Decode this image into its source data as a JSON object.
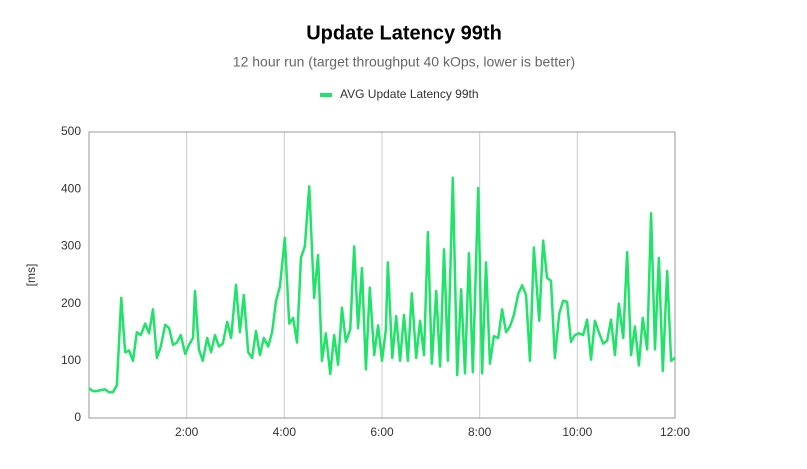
{
  "chart_data": {
    "type": "line",
    "title": "Update Latency 99th",
    "subtitle": "12 hour run (target throughput 40 kOps, lower is better)",
    "y_label": "[ms]",
    "grid": "x",
    "legend": "top",
    "xlim": [
      0,
      12
    ],
    "xticks": [
      {
        "value": 2,
        "label": "2:00"
      },
      {
        "value": 4,
        "label": "4:00"
      },
      {
        "value": 6,
        "label": "6:00"
      },
      {
        "value": 8,
        "label": "8:00"
      },
      {
        "value": 10,
        "label": "10:00"
      },
      {
        "value": 12,
        "label": "12:00"
      }
    ],
    "ylim": [
      0,
      500
    ],
    "yticks": [
      0,
      100,
      200,
      300,
      400,
      500
    ],
    "x": [
      0,
      0.08,
      0.16,
      0.25,
      0.33,
      0.41,
      0.49,
      0.57,
      0.66,
      0.74,
      0.82,
      0.9,
      0.98,
      1.06,
      1.15,
      1.23,
      1.31,
      1.39,
      1.47,
      1.56,
      1.64,
      1.72,
      1.8,
      1.88,
      1.97,
      2.05,
      2.13,
      2.17,
      2.25,
      2.33,
      2.42,
      2.5,
      2.58,
      2.66,
      2.74,
      2.83,
      2.91,
      3.01,
      3.09,
      3.17,
      3.26,
      3.34,
      3.42,
      3.5,
      3.58,
      3.67,
      3.75,
      3.83,
      3.91,
      4.01,
      4.1,
      4.18,
      4.26,
      4.34,
      4.42,
      4.51,
      4.61,
      4.69,
      4.77,
      4.85,
      4.94,
      5.02,
      5.1,
      5.18,
      5.26,
      5.35,
      5.43,
      5.51,
      5.59,
      5.67,
      5.75,
      5.84,
      5.92,
      6,
      6.08,
      6.12,
      6.21,
      6.29,
      6.37,
      6.45,
      6.53,
      6.61,
      6.7,
      6.78,
      6.86,
      6.94,
      7.02,
      7.11,
      7.19,
      7.27,
      7.35,
      7.45,
      7.54,
      7.62,
      7.7,
      7.78,
      7.86,
      7.97,
      8.05,
      8.13,
      8.21,
      8.29,
      8.38,
      8.46,
      8.54,
      8.62,
      8.7,
      8.79,
      8.87,
      8.95,
      9.03,
      9.11,
      9.22,
      9.3,
      9.38,
      9.46,
      9.54,
      9.63,
      9.71,
      9.79,
      9.87,
      9.95,
      10.03,
      10.12,
      10.2,
      10.28,
      10.36,
      10.44,
      10.53,
      10.61,
      10.69,
      10.77,
      10.85,
      10.94,
      11.02,
      11.1,
      11.18,
      11.26,
      11.34,
      11.43,
      11.51,
      11.59,
      11.67,
      11.75,
      11.84,
      11.92,
      12
    ],
    "series": [
      {
        "name": "AVG Update Latency 99th",
        "color": "#22e36a",
        "values": [
          52,
          47,
          47,
          49,
          50,
          45,
          45,
          57,
          210,
          115,
          118,
          100,
          150,
          145,
          165,
          148,
          190,
          105,
          125,
          163,
          157,
          128,
          132,
          145,
          112,
          128,
          140,
          222,
          120,
          100,
          140,
          115,
          145,
          125,
          130,
          168,
          140,
          233,
          150,
          215,
          115,
          105,
          152,
          110,
          140,
          125,
          150,
          205,
          230,
          315,
          165,
          175,
          132,
          280,
          300,
          405,
          210,
          285,
          100,
          148,
          77,
          145,
          93,
          193,
          133,
          155,
          300,
          157,
          262,
          85,
          228,
          110,
          162,
          100,
          155,
          272,
          105,
          178,
          100,
          180,
          100,
          218,
          105,
          170,
          110,
          325,
          95,
          222,
          90,
          295,
          100,
          420,
          75,
          225,
          78,
          288,
          80,
          402,
          78,
          272,
          95,
          143,
          140,
          190,
          150,
          160,
          180,
          217,
          232,
          215,
          100,
          298,
          170,
          310,
          245,
          240,
          105,
          183,
          205,
          203,
          133,
          145,
          148,
          145,
          172,
          102,
          170,
          150,
          130,
          135,
          172,
          110,
          200,
          140,
          290,
          110,
          160,
          92,
          175,
          120,
          358,
          120,
          280,
          82,
          257,
          100,
          105
        ]
      }
    ]
  }
}
